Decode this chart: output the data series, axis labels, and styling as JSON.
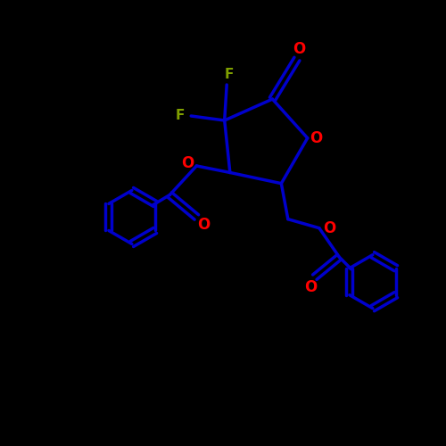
{
  "background_color": "#000000",
  "bond_color": "#0000CC",
  "oxygen_color": "#FF0000",
  "fluorine_color": "#80A000",
  "bond_width": 2.5,
  "figsize": [
    5.0,
    5.0
  ],
  "dpi": 100,
  "xlim": [
    0,
    10
  ],
  "ylim": [
    0,
    10
  ]
}
